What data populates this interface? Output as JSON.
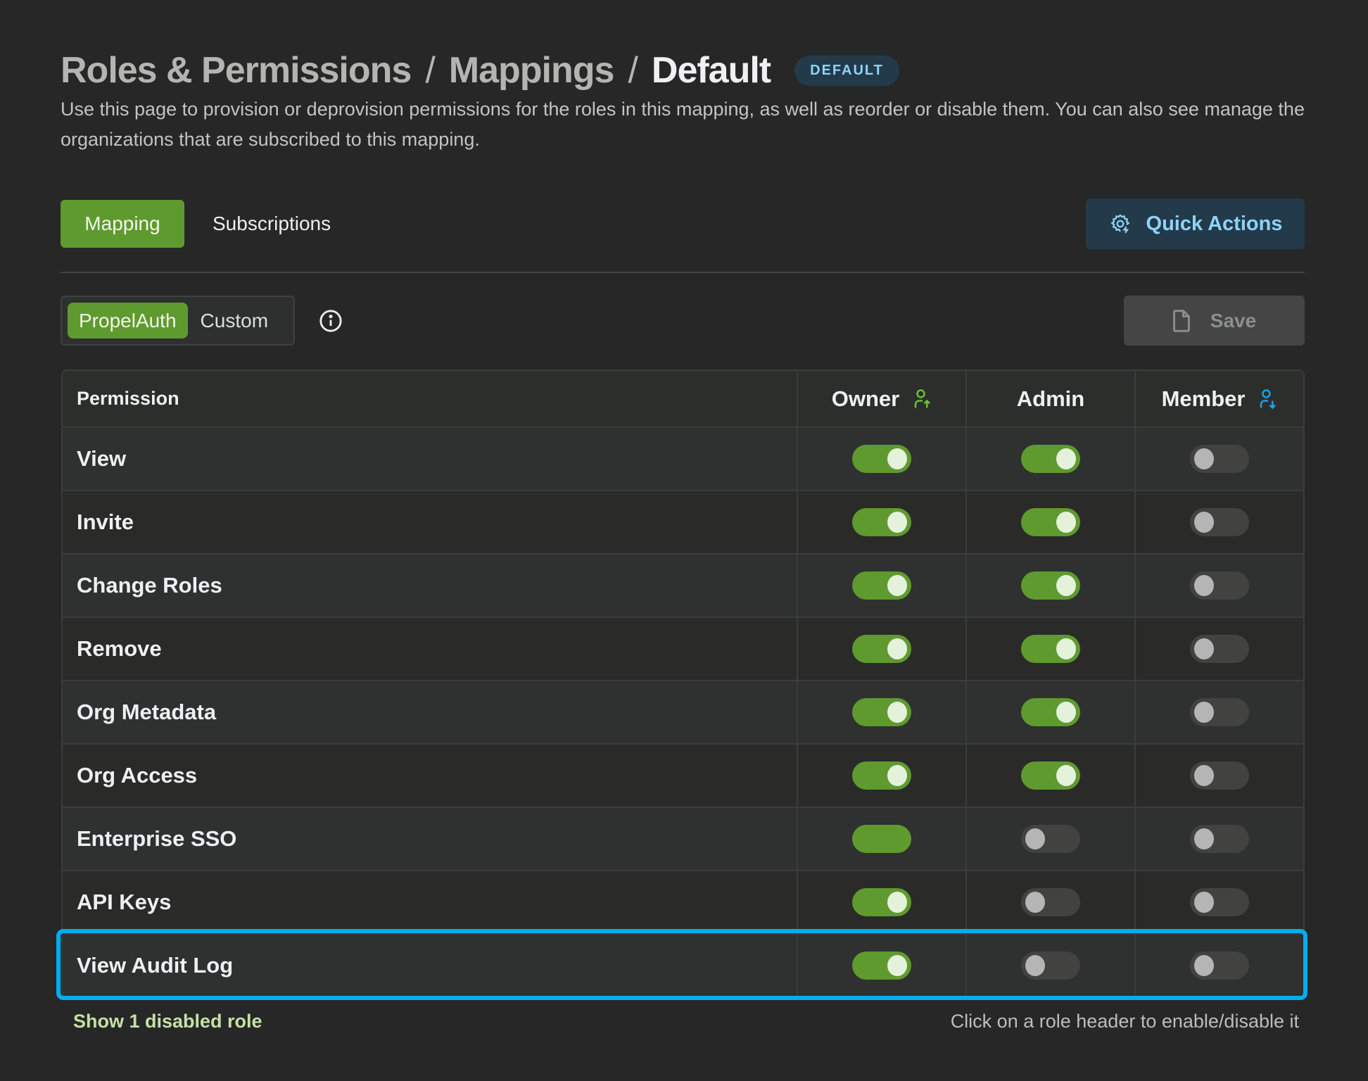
{
  "header": {
    "breadcrumb": [
      "Roles & Permissions",
      "Mappings",
      "Default"
    ],
    "separator": "/",
    "badge": "DEFAULT",
    "description": "Use this page to provision or deprovision permissions for the roles in this mapping, as well as reorder or disable them. You can also see manage the organizations that are subscribed to this mapping."
  },
  "tabs": [
    {
      "label": "Mapping",
      "active": true
    },
    {
      "label": "Subscriptions",
      "active": false
    }
  ],
  "quick_actions": {
    "label": "Quick Actions",
    "icon": "gear-bolt-icon"
  },
  "source_toggle": {
    "options": [
      "PropelAuth",
      "Custom"
    ],
    "selected": "PropelAuth"
  },
  "save": {
    "label": "Save",
    "icon": "file-icon",
    "disabled": true
  },
  "table": {
    "columns": [
      {
        "label": "Permission"
      },
      {
        "label": "Owner",
        "icon": "user-up-icon",
        "icon_color": "#6cbf3a"
      },
      {
        "label": "Admin"
      },
      {
        "label": "Member",
        "icon": "user-down-icon",
        "icon_color": "#1aa3e8"
      }
    ],
    "rows": [
      {
        "label": "View",
        "values": [
          true,
          true,
          false
        ]
      },
      {
        "label": "Invite",
        "values": [
          true,
          true,
          false
        ]
      },
      {
        "label": "Change Roles",
        "values": [
          true,
          true,
          false
        ]
      },
      {
        "label": "Remove",
        "values": [
          true,
          true,
          false
        ]
      },
      {
        "label": "Org Metadata",
        "values": [
          true,
          true,
          false
        ]
      },
      {
        "label": "Org Access",
        "values": [
          true,
          true,
          false
        ]
      },
      {
        "label": "Enterprise SSO",
        "values": [
          true,
          false,
          false
        ],
        "owner_locked": true
      },
      {
        "label": "API Keys",
        "values": [
          true,
          false,
          false
        ]
      },
      {
        "label": "View Audit Log",
        "values": [
          true,
          false,
          false
        ],
        "highlighted": true
      }
    ]
  },
  "footer": {
    "show_disabled": "Show 1 disabled role",
    "hint": "Click on a role header to enable/disable it"
  },
  "colors": {
    "accent_green": "#5f9a2e",
    "highlight": "#00aeef",
    "badge_bg": "#233a4b"
  }
}
